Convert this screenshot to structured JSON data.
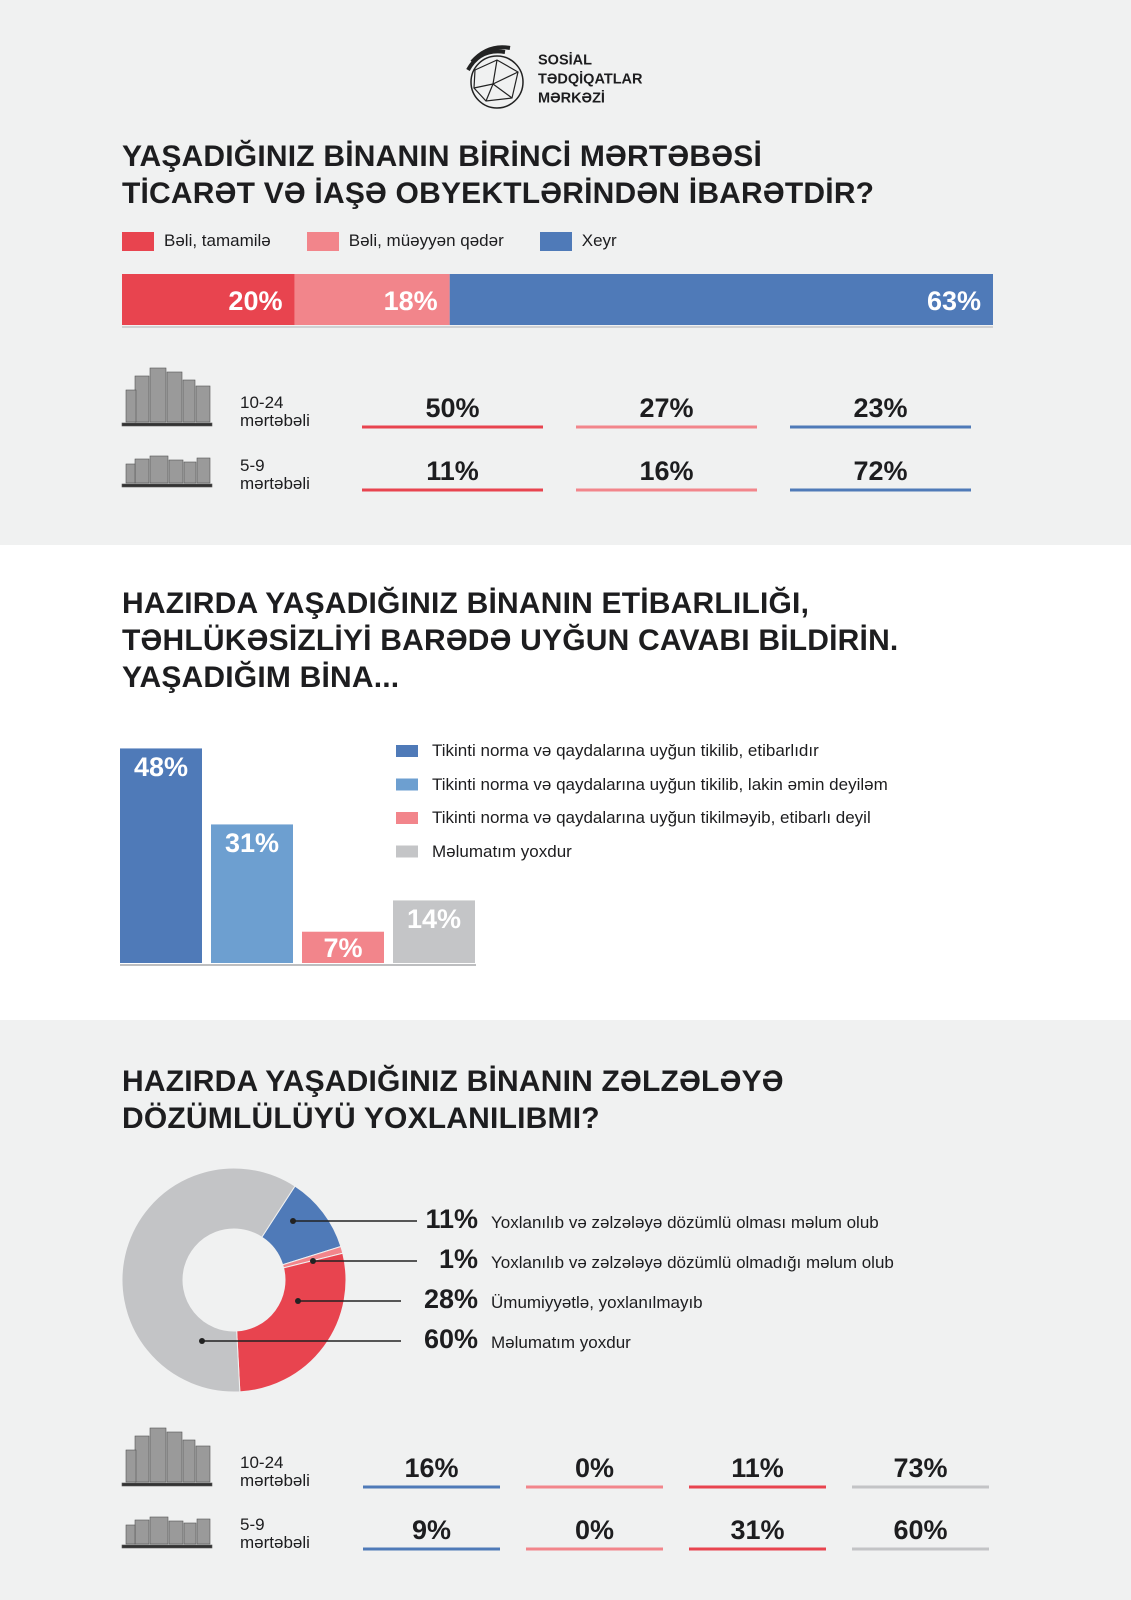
{
  "header": {
    "logo": [
      "SOSİAL",
      "TƏDQİQATLAR",
      "MƏRKƏZİ"
    ]
  },
  "chart_data": [
    {
      "type": "bar",
      "orientation": "horizontal",
      "stacked": true,
      "title": "YAŞADIĞINIZ BİNANIN BİRİNCİ MƏRTƏBƏSİ\nTİCARƏT VƏ İAŞƏ OBYEKTLƏRİNDƏN İBARƏTDİR?",
      "series": [
        {
          "name": "Bəli, tamamilə",
          "color": "#e8444f",
          "values": [
            20
          ],
          "value_labels": [
            "20%"
          ]
        },
        {
          "name": "Bəli, müəyyən qədər",
          "color": "#f2858b",
          "values": [
            18
          ],
          "value_labels": [
            "18%"
          ]
        },
        {
          "name": "Xeyr",
          "color": "#4f7ab8",
          "values": [
            63
          ],
          "value_labels": [
            "63%"
          ]
        }
      ],
      "groups": [
        {
          "name": "10-24\nmərtəbəli",
          "values": [
            50,
            27,
            23
          ],
          "value_labels": [
            "50%",
            "27%",
            "23%"
          ]
        },
        {
          "name": "5-9\nmərtəbəli",
          "values": [
            11,
            16,
            72
          ],
          "value_labels": [
            "11%",
            "16%",
            "72%"
          ]
        }
      ]
    },
    {
      "type": "bar",
      "title": "HAZIRDA YAŞADIĞINIZ BİNANIN ETİBARLILIĞI,\nTƏHLÜKƏSİZLİYİ BARƏDƏ UYĞUN CAVABI BİLDİRİN.\nYAŞADIĞIM BİNA...",
      "categories": [
        "Tikinti norma və qaydalarına uyğun tikilib, etibarlıdır",
        "Tikinti norma və qaydalarına uyğun tikilib, lakin əmin deyiləm",
        "Tikinti norma və qaydalarına uyğun tikilməyib, etibarlı deyil",
        "Məlumatım yoxdur"
      ],
      "values": [
        48,
        31,
        7,
        14
      ],
      "value_labels": [
        "48%",
        "31%",
        "7%",
        "14%"
      ],
      "colors": [
        "#4f7ab8",
        "#6d9fd0",
        "#f2858b",
        "#c4c5c7"
      ]
    },
    {
      "type": "pie",
      "donut": true,
      "title": "HAZIRDA YAŞADIĞINIZ BİNANIN ZƏLZƏLƏYƏ\nDÖZÜMLÜLÜYÜ YOXLANILIBMI?",
      "categories": [
        "Yoxlanılıb və zəlzələyə dözümlü olması məlum olub",
        "Yoxlanılıb və zəlzələyə dözümlü olmadığı məlum olub",
        "Ümumiyyətlə, yoxlanılmayıb",
        "Məlumatım yoxdur"
      ],
      "values": [
        11,
        1,
        28,
        60
      ],
      "value_labels": [
        "11%",
        "1%",
        "28%",
        "60%"
      ],
      "colors": [
        "#4f7ab8",
        "#f2858b",
        "#e8444f",
        "#c3c4c6"
      ],
      "groups": [
        {
          "name": "10-24\nmərtəbəli",
          "values": [
            16,
            0,
            11,
            73
          ],
          "value_labels": [
            "16%",
            "0%",
            "11%",
            "73%"
          ]
        },
        {
          "name": "5-9\nmərtəbəli",
          "values": [
            9,
            0,
            31,
            60
          ],
          "value_labels": [
            "9%",
            "0%",
            "31%",
            "60%"
          ]
        }
      ]
    }
  ]
}
